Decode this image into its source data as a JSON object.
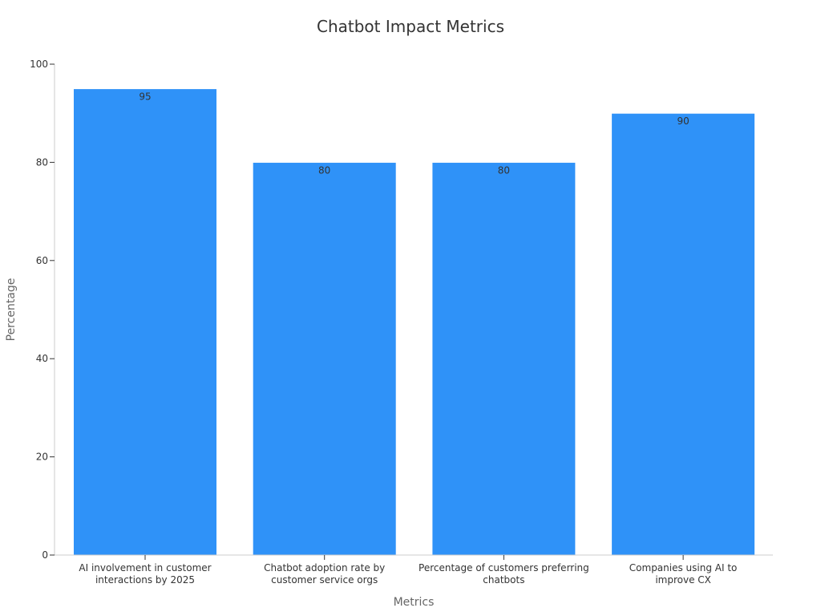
{
  "chart_data": {
    "type": "bar",
    "title": "Chatbot Impact Metrics",
    "xlabel": "Metrics",
    "ylabel": "Percentage",
    "categories": [
      [
        "AI involvement in customer",
        "interactions by 2025"
      ],
      [
        "Chatbot adoption rate by",
        "customer service orgs"
      ],
      [
        "Percentage of customers preferring",
        "chatbots"
      ],
      [
        "Companies using AI to",
        "improve CX"
      ]
    ],
    "values": [
      95,
      80,
      80,
      90
    ],
    "value_labels": [
      "95",
      "80",
      "80",
      "90"
    ],
    "ylim": [
      0,
      100
    ],
    "yticks": [
      0,
      20,
      40,
      60,
      80,
      100
    ],
    "ytick_labels": [
      "0",
      "20",
      "40",
      "60",
      "80",
      "100"
    ],
    "grid": false,
    "bar_color": "#2f92f8"
  }
}
